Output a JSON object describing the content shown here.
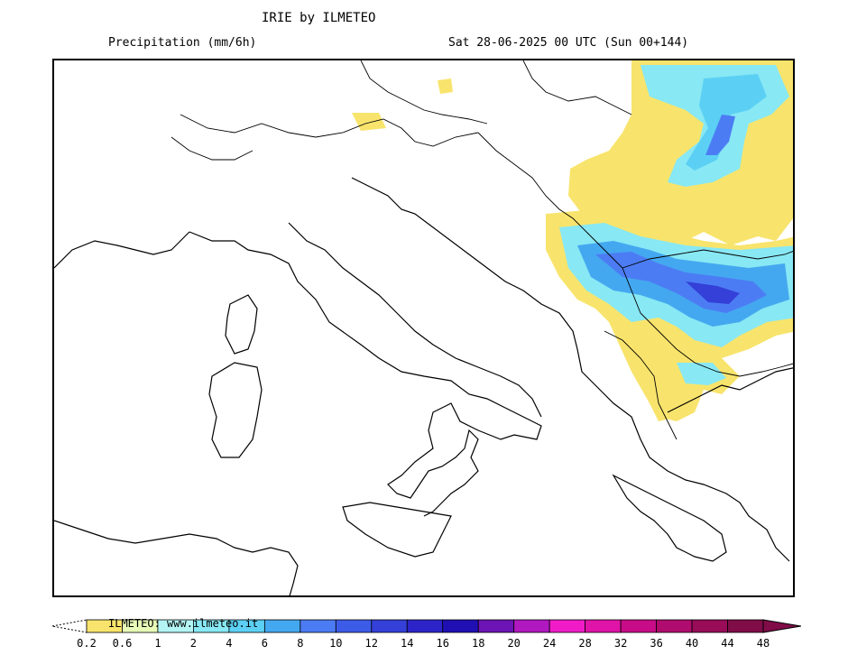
{
  "header": {
    "title": "IRIE by ILMETEO",
    "variable": "Precipitation (mm/6h)",
    "valid_time": "Sat 28-06-2025 00 UTC (Sun 00+144)"
  },
  "map": {
    "region": "Italy and Balkans"
  },
  "legend": {
    "credit": "ILMETEO: www.ilmeteo.it",
    "ticks": [
      "0.2",
      "0.6",
      "1",
      "2",
      "4",
      "6",
      "8",
      "10",
      "12",
      "14",
      "16",
      "18",
      "20",
      "24",
      "28",
      "32",
      "36",
      "40",
      "44",
      "48"
    ],
    "colors": [
      "#f8e46c",
      "#e8fcb8",
      "#b4f4f4",
      "#88e8f4",
      "#5cd0f4",
      "#44a8f0",
      "#4c7cf4",
      "#3c5ce8",
      "#3440d8",
      "#2c24c8",
      "#2010b4",
      "#6c14b4",
      "#b018c0",
      "#f01cc8",
      "#e014a8",
      "#c80c88",
      "#b00c70",
      "#980c58",
      "#800c48"
    ]
  }
}
